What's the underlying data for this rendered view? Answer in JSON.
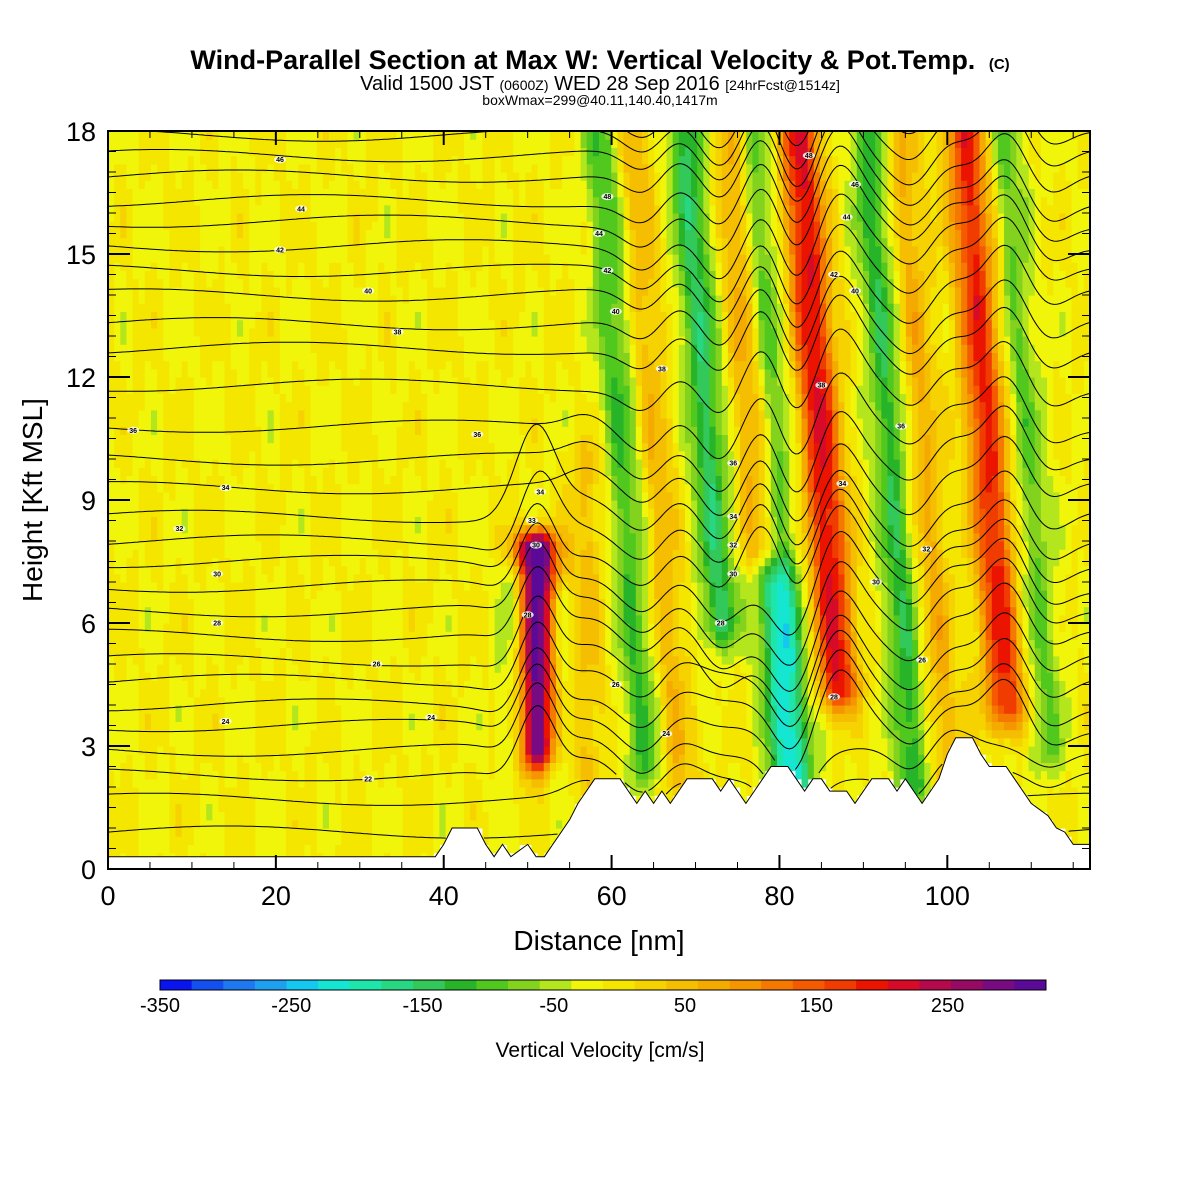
{
  "title": {
    "main": "Wind-Parallel Section at Max W: Vertical Velocity & Pot.Temp.",
    "copyright": "(C)",
    "valid_prefix": "Valid 1500 JST",
    "valid_utc": "(0600Z)",
    "valid_date": "WED 28 Sep 2016",
    "forecast": "[24hrFcst@1514z]",
    "box_max": "boxWmax=299@40.11,140.40,1417m"
  },
  "chart_data": {
    "type": "heatmap",
    "xlabel": "Distance [nm]",
    "ylabel": "Height [Kft MSL]",
    "xlim": [
      0,
      117
    ],
    "ylim": [
      0,
      18
    ],
    "x_ticks": [
      "0",
      "20",
      "40",
      "60",
      "80",
      "100"
    ],
    "x_tick_values": [
      0,
      20,
      40,
      60,
      80,
      100
    ],
    "y_ticks": [
      "0",
      "3",
      "6",
      "9",
      "12",
      "15",
      "18"
    ],
    "y_tick_values": [
      0,
      3,
      6,
      9,
      12,
      15,
      18
    ],
    "grid": false,
    "fill_variable": "Vertical Velocity",
    "contour_variable": "Potential Temperature",
    "colorbar": {
      "title": "Vertical Velocity [cm/s]",
      "tick_labels": [
        "-350",
        "-250",
        "-150",
        "-50",
        "50",
        "150",
        "250"
      ],
      "tick_values": [
        -350,
        -250,
        -150,
        -50,
        50,
        150,
        250
      ],
      "range": [
        -350,
        325
      ],
      "step": 25,
      "colors": [
        "#0a14f0",
        "#1450f0",
        "#1e78f0",
        "#1ea0f0",
        "#14c8f0",
        "#14e6d2",
        "#1ee6aa",
        "#28d782",
        "#32c85a",
        "#28b428",
        "#50c81e",
        "#82d21e",
        "#b4e61e",
        "#f0f50a",
        "#f5e600",
        "#f5d200",
        "#f5be00",
        "#f5aa00",
        "#f59600",
        "#f57800",
        "#f55a00",
        "#f03c00",
        "#eb1400",
        "#d70a28",
        "#b40a4b",
        "#960a64",
        "#780a82",
        "#5a0a96"
      ]
    },
    "wave_features": [
      {
        "x": 51,
        "w": 400,
        "base_kft": 3.0,
        "top_kft": 7.8
      },
      {
        "x": 49,
        "w": -120,
        "base_kft": 3.0,
        "top_kft": 7.0
      },
      {
        "x": 53.5,
        "w": -80,
        "base_kft": 2.8,
        "top_kft": 6.5
      },
      {
        "x": 57,
        "w": 60,
        "base_kft": 2.5,
        "top_kft": 10.0
      },
      {
        "x": 64,
        "w": -100,
        "base_kft": 2.5,
        "top_kft": 18.0
      },
      {
        "x": 68,
        "w": 70,
        "base_kft": 2.2,
        "top_kft": 18.0
      },
      {
        "x": 73,
        "w": -140,
        "base_kft": 6.0,
        "top_kft": 18.0
      },
      {
        "x": 78.5,
        "w": 230,
        "base_kft": 8.0,
        "top_kft": 18.0
      },
      {
        "x": 81.5,
        "w": -230,
        "base_kft": 2.2,
        "top_kft": 18.0
      },
      {
        "x": 87,
        "w": 230,
        "base_kft": 4.5,
        "top_kft": 18.0
      },
      {
        "x": 96,
        "w": -120,
        "base_kft": 2.2,
        "top_kft": 18.0
      },
      {
        "x": 100,
        "w": 80,
        "base_kft": 2.2,
        "top_kft": 18.0
      },
      {
        "x": 107,
        "w": 210,
        "base_kft": 4.0,
        "top_kft": 18.0
      },
      {
        "x": 112,
        "w": -80,
        "base_kft": 3.0,
        "top_kft": 18.0
      }
    ],
    "terrain": [
      [
        0,
        0.3
      ],
      [
        39,
        0.3
      ],
      [
        40,
        0.6
      ],
      [
        41,
        1.0
      ],
      [
        44,
        1.0
      ],
      [
        45,
        0.6
      ],
      [
        46,
        0.3
      ],
      [
        47,
        0.6
      ],
      [
        48,
        0.3
      ],
      [
        50,
        0.6
      ],
      [
        51,
        0.3
      ],
      [
        52,
        0.3
      ],
      [
        53,
        0.6
      ],
      [
        54,
        0.9
      ],
      [
        55,
        1.2
      ],
      [
        56,
        1.6
      ],
      [
        57,
        1.9
      ],
      [
        58,
        2.2
      ],
      [
        61,
        2.2
      ],
      [
        62,
        1.9
      ],
      [
        63,
        1.6
      ],
      [
        64,
        1.9
      ],
      [
        65,
        1.6
      ],
      [
        66,
        1.9
      ],
      [
        67,
        1.6
      ],
      [
        68,
        1.9
      ],
      [
        69,
        2.2
      ],
      [
        72,
        2.2
      ],
      [
        73,
        1.9
      ],
      [
        74,
        2.2
      ],
      [
        75,
        1.9
      ],
      [
        76,
        1.6
      ],
      [
        77,
        1.9
      ],
      [
        78,
        2.2
      ],
      [
        79,
        2.5
      ],
      [
        81,
        2.5
      ],
      [
        82,
        2.2
      ],
      [
        83,
        1.9
      ],
      [
        84,
        2.2
      ],
      [
        85,
        2.2
      ],
      [
        86,
        1.9
      ],
      [
        88,
        1.9
      ],
      [
        89,
        1.6
      ],
      [
        90,
        1.9
      ],
      [
        91,
        2.2
      ],
      [
        93,
        2.2
      ],
      [
        94,
        1.9
      ],
      [
        95,
        2.2
      ],
      [
        96,
        1.9
      ],
      [
        97,
        1.6
      ],
      [
        98,
        1.9
      ],
      [
        99,
        2.2
      ],
      [
        100,
        2.8
      ],
      [
        101,
        3.2
      ],
      [
        103,
        3.2
      ],
      [
        104,
        2.8
      ],
      [
        105,
        2.5
      ],
      [
        107,
        2.5
      ],
      [
        108,
        2.2
      ],
      [
        109,
        1.9
      ],
      [
        110,
        1.6
      ],
      [
        112,
        1.3
      ],
      [
        113,
        1.0
      ],
      [
        114,
        0.9
      ],
      [
        115,
        0.6
      ],
      [
        117,
        0.6
      ]
    ],
    "theta_levels": [
      20,
      21,
      22,
      23,
      24,
      25,
      26,
      27,
      28,
      29,
      30,
      31,
      32,
      33,
      34,
      35,
      36,
      37,
      38,
      39,
      40,
      41,
      42,
      43,
      44,
      45,
      46,
      47,
      48
    ],
    "theta_base_height_kft": [
      0.9,
      1.7,
      2.3,
      2.9,
      3.5,
      4.0,
      4.6,
      5.1,
      5.7,
      6.3,
      6.9,
      7.5,
      8.0,
      8.6,
      9.3,
      10.0,
      10.8,
      11.8,
      12.7,
      13.3,
      14.0,
      14.6,
      15.2,
      15.8,
      16.3,
      16.9,
      17.4,
      17.9,
      18.4
    ],
    "contour_labels": [
      {
        "text": "46",
        "x": 20.5,
        "y": 17.3
      },
      {
        "text": "44",
        "x": 23,
        "y": 16.1
      },
      {
        "text": "42",
        "x": 20.5,
        "y": 15.1
      },
      {
        "text": "40",
        "x": 31,
        "y": 14.1
      },
      {
        "text": "38",
        "x": 34.5,
        "y": 13.1
      },
      {
        "text": "36",
        "x": 3,
        "y": 10.7
      },
      {
        "text": "36",
        "x": 44,
        "y": 10.6
      },
      {
        "text": "34",
        "x": 14,
        "y": 9.3
      },
      {
        "text": "32",
        "x": 8.5,
        "y": 8.3
      },
      {
        "text": "30",
        "x": 13,
        "y": 7.2
      },
      {
        "text": "28",
        "x": 13,
        "y": 6.0
      },
      {
        "text": "26",
        "x": 32,
        "y": 5.0
      },
      {
        "text": "24",
        "x": 14,
        "y": 3.6
      },
      {
        "text": "24",
        "x": 38.5,
        "y": 3.7
      },
      {
        "text": "22",
        "x": 31,
        "y": 2.2
      },
      {
        "text": "34",
        "x": 51.5,
        "y": 9.2
      },
      {
        "text": "33",
        "x": 50.5,
        "y": 8.5
      },
      {
        "text": "30",
        "x": 51,
        "y": 7.9
      },
      {
        "text": "28",
        "x": 50,
        "y": 6.2
      },
      {
        "text": "48",
        "x": 59.5,
        "y": 16.4
      },
      {
        "text": "44",
        "x": 58.5,
        "y": 15.5
      },
      {
        "text": "42",
        "x": 59.5,
        "y": 14.6
      },
      {
        "text": "40",
        "x": 60.5,
        "y": 13.6
      },
      {
        "text": "38",
        "x": 66,
        "y": 12.2
      },
      {
        "text": "26",
        "x": 60.5,
        "y": 4.5
      },
      {
        "text": "24",
        "x": 66.5,
        "y": 3.3
      },
      {
        "text": "36",
        "x": 74.5,
        "y": 9.9
      },
      {
        "text": "34",
        "x": 74.5,
        "y": 8.6
      },
      {
        "text": "32",
        "x": 74.5,
        "y": 7.9
      },
      {
        "text": "30",
        "x": 74.5,
        "y": 7.2
      },
      {
        "text": "28",
        "x": 73,
        "y": 6.0
      },
      {
        "text": "48",
        "x": 83.5,
        "y": 17.4
      },
      {
        "text": "46",
        "x": 89,
        "y": 16.7
      },
      {
        "text": "44",
        "x": 88,
        "y": 15.9
      },
      {
        "text": "42",
        "x": 86.5,
        "y": 14.5
      },
      {
        "text": "40",
        "x": 89,
        "y": 14.1
      },
      {
        "text": "38",
        "x": 85,
        "y": 11.8
      },
      {
        "text": "36",
        "x": 94.5,
        "y": 10.8
      },
      {
        "text": "34",
        "x": 87.5,
        "y": 9.4
      },
      {
        "text": "32",
        "x": 97.5,
        "y": 7.8
      },
      {
        "text": "30",
        "x": 91.5,
        "y": 7.0
      },
      {
        "text": "26",
        "x": 97,
        "y": 5.1
      },
      {
        "text": "28",
        "x": 86.5,
        "y": 4.2
      }
    ]
  }
}
